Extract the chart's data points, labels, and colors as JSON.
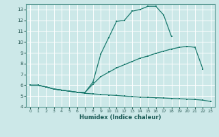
{
  "xlabel": "Humidex (Indice chaleur)",
  "bg_color": "#cce8e8",
  "grid_color": "#ffffff",
  "line_color": "#1a7a6e",
  "xlim": [
    -0.5,
    23.5
  ],
  "ylim": [
    4,
    13.5
  ],
  "xticks": [
    0,
    1,
    2,
    3,
    4,
    5,
    6,
    7,
    8,
    9,
    10,
    11,
    12,
    13,
    14,
    15,
    16,
    17,
    18,
    19,
    20,
    21,
    22,
    23
  ],
  "yticks": [
    4,
    5,
    6,
    7,
    8,
    9,
    10,
    11,
    12,
    13
  ],
  "line1_x": [
    0,
    1,
    2,
    3,
    4,
    5,
    6,
    7,
    8,
    9,
    10,
    11,
    12,
    13,
    14,
    15,
    16,
    17,
    18
  ],
  "line1_y": [
    6.0,
    6.0,
    5.85,
    5.65,
    5.55,
    5.45,
    5.35,
    5.35,
    6.3,
    8.9,
    10.4,
    11.9,
    12.0,
    12.85,
    13.0,
    13.3,
    13.3,
    12.5,
    10.5
  ],
  "line2_x": [
    0,
    1,
    2,
    3,
    4,
    5,
    6,
    7,
    8,
    9,
    10,
    11,
    12,
    13,
    14,
    15,
    16,
    17,
    18,
    19,
    20,
    21,
    22
  ],
  "line2_y": [
    6.0,
    6.0,
    5.85,
    5.65,
    5.55,
    5.45,
    5.35,
    5.35,
    6.1,
    6.8,
    7.2,
    7.6,
    7.9,
    8.2,
    8.5,
    8.7,
    8.95,
    9.15,
    9.35,
    9.5,
    9.6,
    9.5,
    7.5
  ],
  "line3_x": [
    0,
    1,
    2,
    3,
    4,
    5,
    6,
    7,
    8,
    9,
    10,
    11,
    12,
    13,
    14,
    15,
    16,
    17,
    18,
    19,
    20,
    21,
    22,
    23
  ],
  "line3_y": [
    6.0,
    6.0,
    5.85,
    5.65,
    5.55,
    5.45,
    5.35,
    5.25,
    5.2,
    5.15,
    5.1,
    5.05,
    5.0,
    4.95,
    4.9,
    4.88,
    4.85,
    4.82,
    4.78,
    4.75,
    4.72,
    4.68,
    4.62,
    4.5
  ]
}
